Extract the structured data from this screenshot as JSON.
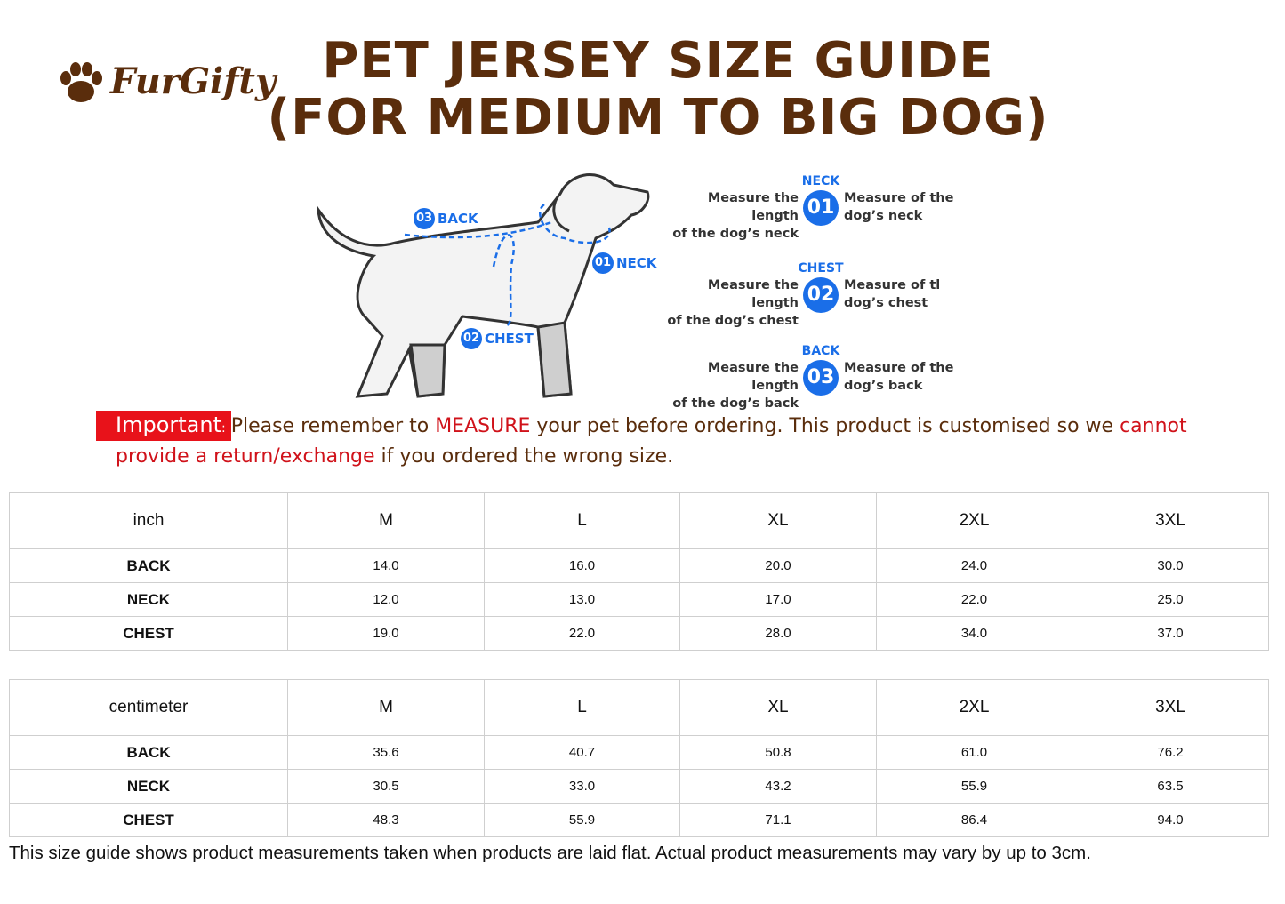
{
  "logo": "FurGifty",
  "title": {
    "line1": "PET JERSEY SIZE GUIDE",
    "line2": "(FOR MEDIUM TO BIG DOG)"
  },
  "diagram": {
    "labels": [
      {
        "number": "03",
        "label": "BACK"
      },
      {
        "number": "01",
        "label": "NECK"
      },
      {
        "number": "02",
        "label": "CHEST"
      }
    ]
  },
  "measures": [
    {
      "heading": "NECK",
      "number": "01",
      "left": [
        "Measure the length",
        "of the dog’s neck"
      ],
      "right": [
        "Measure of the",
        "dog’s neck"
      ]
    },
    {
      "heading": "CHEST",
      "number": "02",
      "left": [
        "Measure the length",
        "of the dog’s chest"
      ],
      "right": [
        "Measure of tl",
        "dog’s chest"
      ]
    },
    {
      "heading": "BACK",
      "number": "03",
      "left": [
        "Measure the length",
        "of the dog’s back"
      ],
      "right": [
        "Measure of the",
        "dog’s back"
      ]
    }
  ],
  "notice": {
    "label": "Important",
    "colon": ":",
    "parts": [
      "Please remember to ",
      "MEASURE",
      " your pet before ordering. This product is customised so we ",
      "cannot",
      " ",
      "provide a return/exchange",
      " if you ordered the wrong size."
    ]
  },
  "tables": [
    {
      "header": [
        "inch",
        "M",
        "L",
        "XL",
        "2XL",
        "3XL"
      ],
      "rows": [
        [
          "BACK",
          "14.0",
          "16.0",
          "20.0",
          "24.0",
          "30.0"
        ],
        [
          "NECK",
          "12.0",
          "13.0",
          "17.0",
          "22.0",
          "25.0"
        ],
        [
          "CHEST",
          "19.0",
          "22.0",
          "28.0",
          "34.0",
          "37.0"
        ]
      ]
    },
    {
      "header": [
        "centimeter",
        "M",
        "L",
        "XL",
        "2XL",
        "3XL"
      ],
      "rows": [
        [
          "BACK",
          "35.6",
          "40.7",
          "50.8",
          "61.0",
          "76.2"
        ],
        [
          "NECK",
          "30.5",
          "33.0",
          "43.2",
          "55.9",
          "63.5"
        ],
        [
          "CHEST",
          "48.3",
          "55.9",
          "71.1",
          "86.4",
          "94.0"
        ]
      ]
    }
  ],
  "footnote": "This size guide shows product measurements taken when products are laid flat. Actual product measurements may vary by up to 3cm."
}
